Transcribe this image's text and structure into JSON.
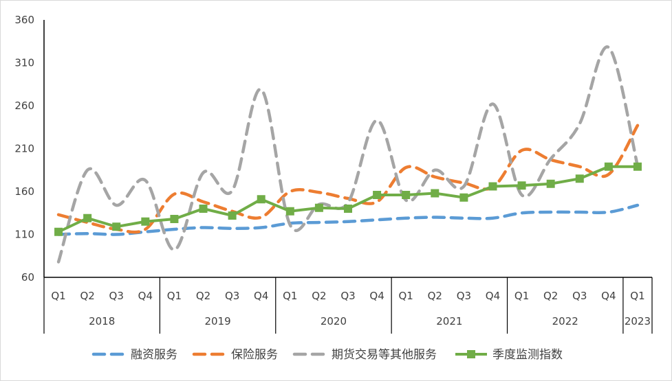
{
  "chart_data": {
    "type": "line",
    "title": "",
    "xlabel": "",
    "ylabel": "",
    "ylim": [
      60,
      360
    ],
    "yticks": [
      60,
      110,
      160,
      210,
      260,
      310,
      360
    ],
    "categories": [
      "Q1",
      "Q2",
      "Q3",
      "Q4",
      "Q1",
      "Q2",
      "Q3",
      "Q4",
      "Q1",
      "Q2",
      "Q3",
      "Q4",
      "Q1",
      "Q2",
      "Q3",
      "Q4",
      "Q1",
      "Q2",
      "Q3",
      "Q4",
      "Q1"
    ],
    "groups": [
      {
        "label": "2018",
        "count": 4
      },
      {
        "label": "2019",
        "count": 4
      },
      {
        "label": "2020",
        "count": 4
      },
      {
        "label": "2021",
        "count": 4
      },
      {
        "label": "2022",
        "count": 4
      },
      {
        "label": "2023",
        "count": 1
      }
    ],
    "grid": false,
    "legend_position": "bottom",
    "series": [
      {
        "name": "融资服务",
        "style": "dashed",
        "marker": "none",
        "color": "#5B9BD5",
        "values": [
          110,
          111,
          110,
          113,
          116,
          118,
          117,
          118,
          123,
          124,
          125,
          127,
          129,
          130,
          129,
          129,
          135,
          136,
          136,
          136,
          144
        ]
      },
      {
        "name": "保险服务",
        "style": "dashed",
        "marker": "none",
        "color": "#ED7D31",
        "values": [
          133,
          124,
          116,
          116,
          157,
          148,
          137,
          130,
          160,
          159,
          152,
          148,
          188,
          177,
          170,
          165,
          208,
          197,
          189,
          180,
          237
        ]
      },
      {
        "name": "期货交易等其他服务",
        "style": "dashed",
        "marker": "none",
        "color": "#A5A5A5",
        "values": [
          78,
          185,
          144,
          173,
          92,
          182,
          161,
          279,
          121,
          145,
          147,
          243,
          150,
          185,
          166,
          262,
          156,
          198,
          239,
          328,
          190
        ]
      },
      {
        "name": "季度监测指数",
        "style": "solid",
        "marker": "square",
        "color": "#70AD47",
        "values": [
          113,
          129,
          119,
          125,
          128,
          140,
          132,
          151,
          137,
          141,
          140,
          156,
          156,
          158,
          153,
          166,
          167,
          169,
          175,
          189,
          189
        ]
      }
    ]
  }
}
